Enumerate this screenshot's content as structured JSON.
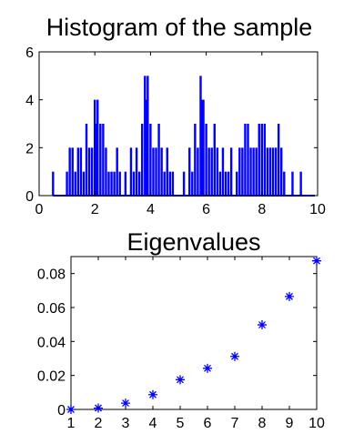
{
  "colors": {
    "series": "#0000ff",
    "axis": "#000000",
    "background": "#ffffff"
  },
  "chart_data": [
    {
      "type": "bar",
      "title": "Histogram of the sample",
      "xlabel": "",
      "ylabel": "",
      "xlim": [
        0,
        10
      ],
      "ylim": [
        0,
        6
      ],
      "x_ticks": [
        "0",
        "2",
        "4",
        "6",
        "8",
        "10"
      ],
      "y_ticks": [
        "0",
        "2",
        "4",
        "6"
      ],
      "grid": false,
      "x": [
        0.5,
        1.0,
        1.1,
        1.2,
        1.3,
        1.4,
        1.5,
        1.6,
        1.7,
        1.8,
        1.9,
        2.0,
        2.05,
        2.1,
        2.2,
        2.3,
        2.4,
        2.5,
        2.6,
        2.7,
        2.8,
        2.9,
        3.1,
        3.3,
        3.4,
        3.5,
        3.6,
        3.7,
        3.8,
        3.85,
        3.9,
        4.0,
        4.1,
        4.2,
        4.3,
        4.4,
        4.5,
        4.6,
        4.7,
        4.8,
        5.2,
        5.4,
        5.5,
        5.6,
        5.7,
        5.8,
        5.85,
        5.9,
        6.0,
        6.1,
        6.2,
        6.3,
        6.4,
        6.5,
        6.6,
        6.7,
        6.8,
        6.9,
        7.1,
        7.2,
        7.3,
        7.4,
        7.5,
        7.6,
        7.7,
        7.8,
        7.9,
        8.0,
        8.1,
        8.2,
        8.3,
        8.4,
        8.5,
        8.6,
        8.7,
        8.8,
        9.1,
        9.4
      ],
      "values": [
        1,
        1,
        2,
        2,
        1,
        2,
        2,
        1,
        3,
        2,
        2,
        4,
        3,
        4,
        3,
        3,
        2,
        1,
        1,
        1,
        2,
        1,
        1,
        2,
        1,
        2,
        1,
        3,
        5,
        4,
        5,
        3,
        2,
        2,
        3,
        2,
        1,
        2,
        1,
        1,
        1,
        2,
        1,
        3,
        2,
        5,
        4,
        4,
        3,
        2,
        2,
        3,
        2,
        1,
        2,
        1,
        1,
        2,
        1,
        2,
        2,
        3,
        3,
        2,
        2,
        2,
        3,
        3,
        3,
        2,
        2,
        2,
        2,
        3,
        2,
        1,
        1,
        1
      ]
    },
    {
      "type": "scatter",
      "title": "Eigenvalues",
      "xlabel": "",
      "ylabel": "",
      "xlim": [
        1,
        10
      ],
      "ylim": [
        0,
        0.09
      ],
      "x_ticks": [
        "1",
        "2",
        "3",
        "4",
        "5",
        "6",
        "7",
        "8",
        "9",
        "10"
      ],
      "y_ticks": [
        "0",
        "0.02",
        "0.04",
        "0.06",
        "0.08"
      ],
      "grid": false,
      "marker": "asterisk",
      "x": [
        1,
        2,
        3,
        4,
        5,
        6,
        7,
        8,
        9,
        10
      ],
      "values": [
        0.0,
        0.0008,
        0.0037,
        0.0087,
        0.0175,
        0.0242,
        0.0312,
        0.0498,
        0.0665,
        0.0875
      ]
    }
  ]
}
